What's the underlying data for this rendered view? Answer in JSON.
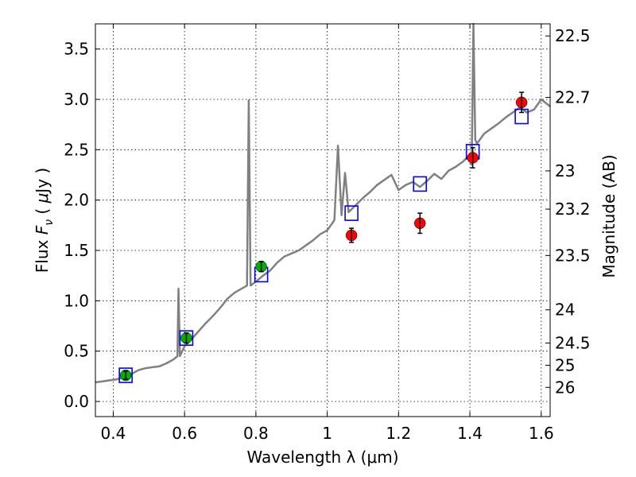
{
  "chart_data": {
    "type": "scatter",
    "xlabel": "Wavelength  λ (μm)",
    "ylabel_parts": [
      "Flux  ",
      "F",
      "ν",
      "  ( ",
      "μ",
      "Jy )"
    ],
    "ylabel_right": "Magnitude (AB)",
    "xlim": [
      0.35,
      1.625
    ],
    "ylim": [
      -0.15,
      3.75
    ],
    "grid": true,
    "x_ticks": [
      0.4,
      0.6,
      0.8,
      1.0,
      1.2,
      1.4,
      1.6
    ],
    "x_tick_labels": [
      "0.4",
      "0.6",
      "0.8",
      "1",
      "1.2",
      "1.4",
      "1.6"
    ],
    "y_ticks": [
      0.0,
      0.5,
      1.0,
      1.5,
      2.0,
      2.5,
      3.0,
      3.5
    ],
    "y_tick_labels": [
      "0.0",
      "0.5",
      "1.0",
      "1.5",
      "2.0",
      "2.5",
      "3.0",
      "3.5"
    ],
    "right_ticks": [
      {
        "label": "22.5",
        "flux": 3.63
      },
      {
        "label": "22.7",
        "flux": 3.02
      },
      {
        "label": "23",
        "flux": 2.29
      },
      {
        "label": "23.2",
        "flux": 1.91
      },
      {
        "label": "23.5",
        "flux": 1.45
      },
      {
        "label": "24",
        "flux": 0.91
      },
      {
        "label": "24.5",
        "flux": 0.58
      },
      {
        "label": "25",
        "flux": 0.36
      },
      {
        "label": "26",
        "flux": 0.14
      }
    ],
    "series": [
      {
        "kind": "spectrum",
        "color": "#808080",
        "points": [
          [
            0.35,
            0.19
          ],
          [
            0.37,
            0.2
          ],
          [
            0.39,
            0.21
          ],
          [
            0.41,
            0.22
          ],
          [
            0.43,
            0.24
          ],
          [
            0.45,
            0.27
          ],
          [
            0.47,
            0.31
          ],
          [
            0.49,
            0.33
          ],
          [
            0.51,
            0.34
          ],
          [
            0.53,
            0.35
          ],
          [
            0.55,
            0.38
          ],
          [
            0.57,
            0.42
          ],
          [
            0.58,
            0.45
          ],
          [
            0.583,
            1.12
          ],
          [
            0.587,
            0.45
          ],
          [
            0.6,
            0.55
          ],
          [
            0.62,
            0.62
          ],
          [
            0.64,
            0.7
          ],
          [
            0.66,
            0.78
          ],
          [
            0.68,
            0.85
          ],
          [
            0.7,
            0.93
          ],
          [
            0.72,
            1.02
          ],
          [
            0.74,
            1.08
          ],
          [
            0.76,
            1.12
          ],
          [
            0.775,
            1.15
          ],
          [
            0.78,
            2.99
          ],
          [
            0.785,
            1.15
          ],
          [
            0.8,
            1.19
          ],
          [
            0.82,
            1.25
          ],
          [
            0.84,
            1.3
          ],
          [
            0.86,
            1.38
          ],
          [
            0.88,
            1.44
          ],
          [
            0.9,
            1.47
          ],
          [
            0.92,
            1.5
          ],
          [
            0.94,
            1.55
          ],
          [
            0.96,
            1.6
          ],
          [
            0.98,
            1.66
          ],
          [
            1.0,
            1.7
          ],
          [
            1.02,
            1.8
          ],
          [
            1.03,
            2.54
          ],
          [
            1.04,
            1.85
          ],
          [
            1.05,
            2.27
          ],
          [
            1.06,
            1.88
          ],
          [
            1.08,
            1.95
          ],
          [
            1.1,
            2.02
          ],
          [
            1.12,
            2.08
          ],
          [
            1.14,
            2.15
          ],
          [
            1.16,
            2.2
          ],
          [
            1.18,
            2.25
          ],
          [
            1.2,
            2.1
          ],
          [
            1.22,
            2.15
          ],
          [
            1.24,
            2.18
          ],
          [
            1.26,
            2.13
          ],
          [
            1.28,
            2.19
          ],
          [
            1.3,
            2.26
          ],
          [
            1.32,
            2.21
          ],
          [
            1.34,
            2.29
          ],
          [
            1.36,
            2.33
          ],
          [
            1.38,
            2.38
          ],
          [
            1.4,
            2.45
          ],
          [
            1.405,
            2.35
          ],
          [
            1.41,
            3.75
          ],
          [
            1.415,
            2.6
          ],
          [
            1.42,
            2.56
          ],
          [
            1.44,
            2.66
          ],
          [
            1.46,
            2.71
          ],
          [
            1.48,
            2.76
          ],
          [
            1.5,
            2.82
          ],
          [
            1.52,
            2.87
          ],
          [
            1.54,
            2.92
          ],
          [
            1.56,
            2.87
          ],
          [
            1.58,
            2.9
          ],
          [
            1.6,
            3.0
          ],
          [
            1.625,
            2.93
          ]
        ]
      },
      {
        "kind": "model-boxes",
        "color": "#0000ff",
        "points": [
          [
            0.435,
            0.26
          ],
          [
            0.605,
            0.63
          ],
          [
            0.815,
            1.26
          ],
          [
            1.068,
            1.87
          ],
          [
            1.26,
            2.16
          ],
          [
            1.408,
            2.48
          ],
          [
            1.545,
            2.83
          ]
        ]
      },
      {
        "kind": "observed-green",
        "color": "#00b000",
        "points": [
          {
            "x": 0.435,
            "y": 0.26,
            "err": 0.04
          },
          {
            "x": 0.605,
            "y": 0.63,
            "err": 0.05
          },
          {
            "x": 0.815,
            "y": 1.34,
            "err": 0.05
          }
        ]
      },
      {
        "kind": "observed-red",
        "color": "#ff0000",
        "points": [
          {
            "x": 1.068,
            "y": 1.65,
            "err": 0.07
          },
          {
            "x": 1.26,
            "y": 1.77,
            "err": 0.1
          },
          {
            "x": 1.408,
            "y": 2.42,
            "err": 0.1
          },
          {
            "x": 1.545,
            "y": 2.97,
            "err": 0.1
          }
        ]
      }
    ]
  }
}
